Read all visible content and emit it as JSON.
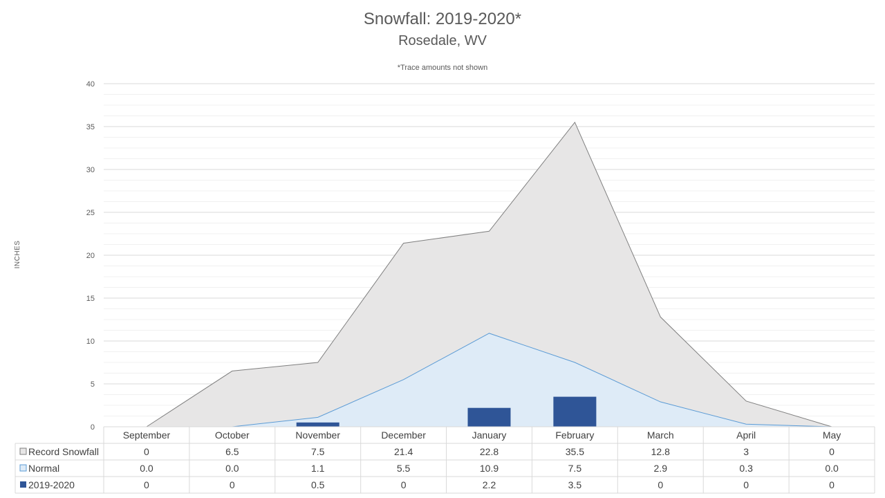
{
  "chart_data": {
    "type": "area",
    "title": "Snowfall: 2019-2020*",
    "subtitle": "Rosedale, WV",
    "note": "*Trace amounts not shown",
    "ylabel": "INCHES",
    "ylim": [
      0,
      40
    ],
    "yticks": [
      0,
      5,
      10,
      15,
      20,
      25,
      30,
      35,
      40
    ],
    "grid": true,
    "categories": [
      "September",
      "October",
      "November",
      "December",
      "January",
      "February",
      "March",
      "April",
      "May"
    ],
    "series": [
      {
        "name": "Record Snowfall",
        "kind": "area",
        "color": "#e7e6e6",
        "stroke": "#7f7f7f",
        "values": [
          0,
          6.5,
          7.5,
          21.4,
          22.8,
          35.5,
          12.8,
          3,
          0
        ],
        "labels": [
          "0",
          "6.5",
          "7.5",
          "21.4",
          "22.8",
          "35.5",
          "12.8",
          "3",
          "0"
        ]
      },
      {
        "name": "Normal",
        "kind": "area",
        "color": "#deebf7",
        "stroke": "#5b9bd5",
        "values": [
          0,
          0,
          1.1,
          5.5,
          10.9,
          7.5,
          2.9,
          0.3,
          0
        ],
        "labels": [
          "0.0",
          "0.0",
          "1.1",
          "5.5",
          "10.9",
          "7.5",
          "2.9",
          "0.3",
          "0.0"
        ]
      },
      {
        "name": "2019-2020",
        "kind": "bar",
        "color": "#2f5597",
        "values": [
          0,
          0,
          0.5,
          0,
          2.2,
          3.5,
          0,
          0,
          0
        ],
        "labels": [
          "0",
          "0",
          "0.5",
          "0",
          "2.2",
          "3.5",
          "0",
          "0",
          "0"
        ]
      }
    ]
  }
}
